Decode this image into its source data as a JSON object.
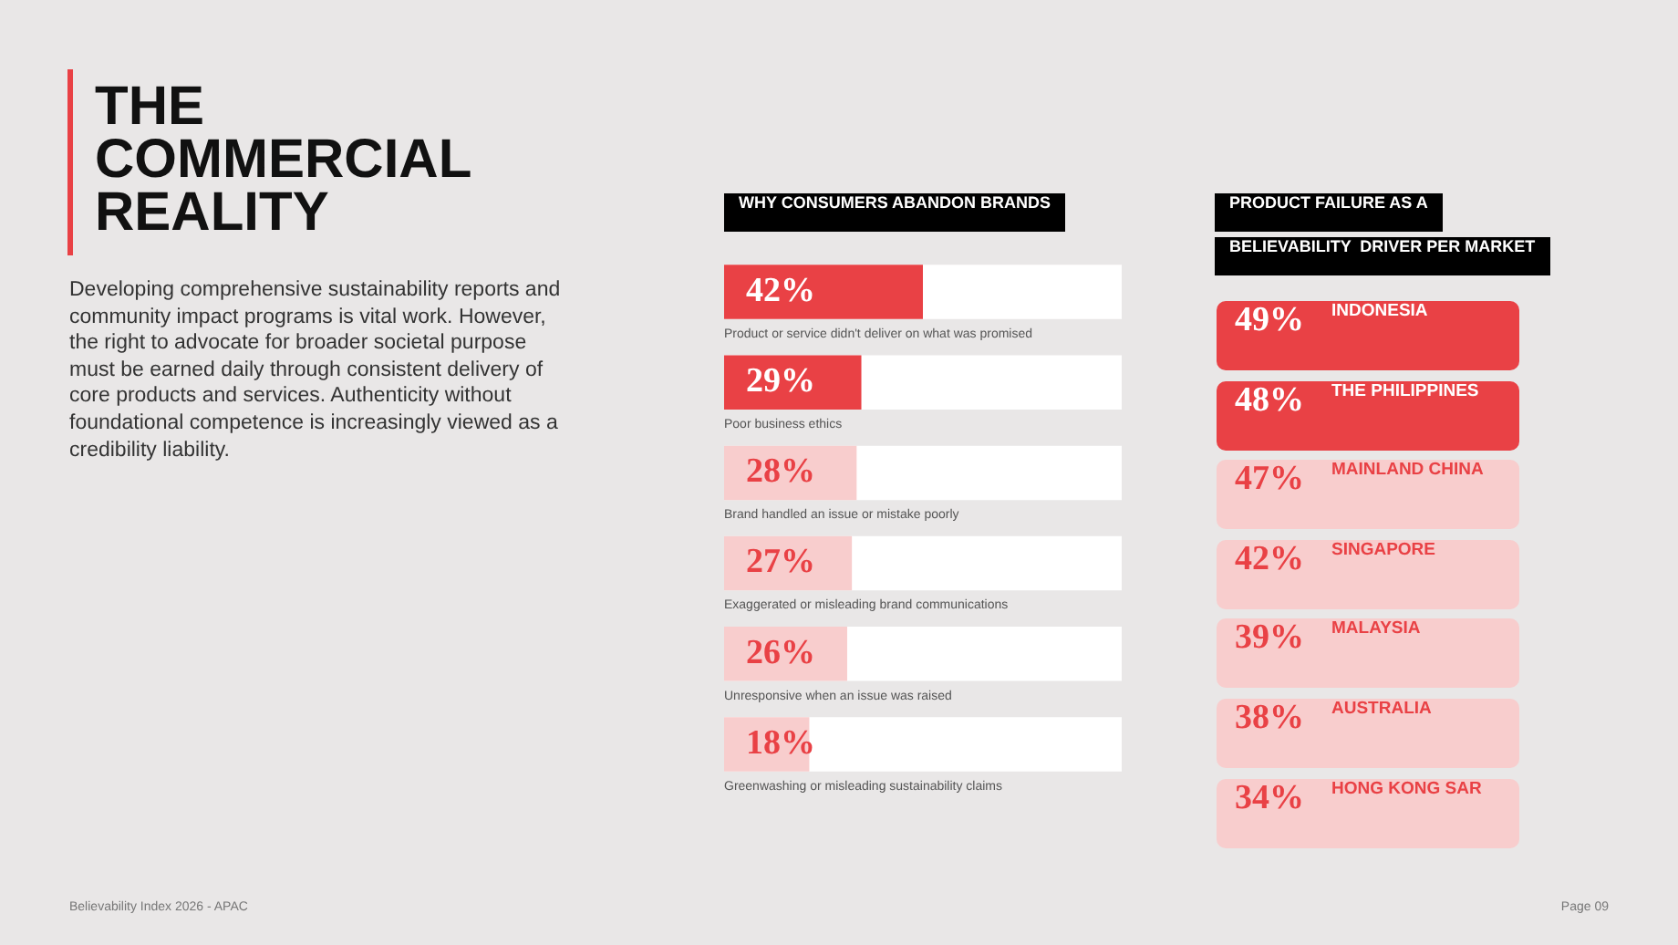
{
  "chart_data": [
    {
      "type": "other",
      "title": "THE COMMERCIAL REALITY",
      "subtitle": "Developing comprehensive sustainability reports and community impact programs is vital work. However, the right to advocate for broader societal purpose must be earned daily through consistent delivery of core products and services. Authenticity without foundational competence is increasingly viewed as a credibility liability.",
      "annotations": [
        "Believability Index 2026 - APAC",
        "Page 09"
      ]
    },
    {
      "type": "bar",
      "orientation": "horizontal",
      "title": "WHY CONSUMERS ABANDON BRANDS",
      "categories": [
        "Product or service didn't deliver on what was promised",
        "Poor business ethics",
        "Brand handled an issue or mistake poorly",
        "Exaggerated or misleading brand communications",
        "Unresponsive when an issue was raised",
        "Greenwashing or misleading sustainability claims"
      ],
      "values": [
        42,
        29,
        28,
        27,
        26,
        18
      ],
      "colors": [
        "#e94145",
        "#e94145",
        "#f8cdcd",
        "#f8cdcd",
        "#f8cdcd",
        "#f8cdcd"
      ],
      "value_labels": [
        "42%",
        "29%",
        "28%",
        "27%",
        "26%",
        "18%"
      ]
    },
    {
      "type": "other",
      "title": "PRODUCT FAILURE AS A\nBELIEVABILITY  DRIVER PER MARKET",
      "categories": [
        "INDONESIA",
        "THE PHILIPPINES",
        "MAINLAND CHINA",
        "SINGAPORE",
        "MALAYSIA",
        "AUSTRALIA",
        "HONG KONG SAR"
      ],
      "values": [
        49,
        48,
        47,
        42,
        39,
        38,
        34
      ],
      "colors": [
        "#e94145",
        "#e94145",
        "#f8cdcd",
        "#f8cdcd",
        "#f8cdcd",
        "#f8cdcd",
        "#f8cdcd"
      ],
      "value_labels": [
        "49%",
        "48%",
        "47%",
        "42%",
        "39%",
        "38%",
        "34%"
      ]
    }
  ]
}
